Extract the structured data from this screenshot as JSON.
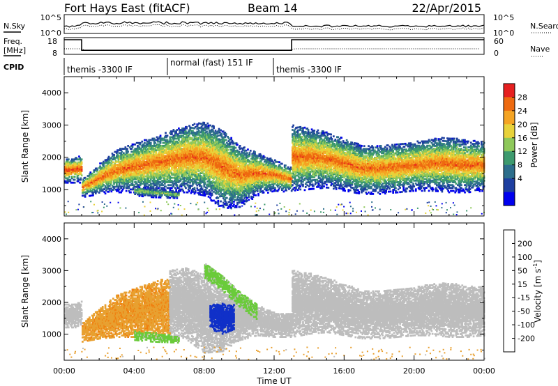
{
  "header": {
    "station": "Fort Hays East (fitACF)",
    "beam": "Beam 14",
    "date": "22/Apr/2015"
  },
  "panels": {
    "nsky": {
      "label": "N.Sky",
      "ticks_left": [
        "10^5",
        "10^0"
      ],
      "ticks_right": [
        "10^5",
        "10^0"
      ],
      "right_label": "N.Search"
    },
    "freq": {
      "label_line1": "Freq.",
      "label_line2": "[MHz]",
      "ticks_left": [
        "18",
        "8"
      ],
      "ticks_right": [
        "60",
        "0"
      ],
      "right_label": "Nave"
    },
    "cpid": {
      "label": "CPID",
      "segments": [
        "themis -3300 IF",
        "normal (fast) 151 IF",
        "themis -3300 IF"
      ]
    }
  },
  "axes": {
    "ylabel": "Slant Range [km]",
    "xlabel": "Time UT",
    "x_ticks": [
      "00:00",
      "04:00",
      "08:00",
      "12:00",
      "16:00",
      "20:00",
      "00:00"
    ],
    "y_ticks": [
      "1000",
      "2000",
      "3000",
      "4000"
    ]
  },
  "colorbars": {
    "power": {
      "label": "Power [dB]",
      "ticks": [
        "4",
        "8",
        "12",
        "16",
        "20",
        "24",
        "28"
      ],
      "colors": [
        "#0000ee",
        "#1e3fa0",
        "#2d6e8c",
        "#3d9a6e",
        "#8ec85a",
        "#e8d23a",
        "#f5a423",
        "#ee6a10",
        "#e62020"
      ]
    },
    "velocity": {
      "label": "Velocity [m s",
      "label_sup": "-1",
      "label_end": "]",
      "ticks": [
        "200",
        "100",
        "50",
        "15",
        "-15",
        "-50",
        "-100",
        "-200"
      ],
      "colors": [
        "#1030c8",
        "#2e63cc",
        "#3c8f5a",
        "#6acb3a",
        "#bdbdbd",
        "#e8a030",
        "#f08010",
        "#ee5010",
        "#e01010"
      ]
    }
  },
  "chart_data": [
    {
      "type": "heatmap",
      "panel": "power",
      "title": "",
      "xlabel": "Time UT",
      "ylabel": "Slant Range [km]",
      "xlim": [
        0,
        24
      ],
      "ylim": [
        180,
        4500
      ],
      "zlabel": "Power [dB]",
      "zlim": [
        0,
        30
      ],
      "segments": [
        {
          "t": [
            0.0,
            0.5,
            1.0
          ],
          "center_km": [
            1600,
            1600,
            1650
          ],
          "width_km": [
            400,
            400,
            450
          ],
          "peak_db": 26
        },
        {
          "t": [
            1.0,
            2.0,
            3.0,
            4.0,
            5.0,
            6.0,
            7.0,
            8.0,
            9.0,
            10.0,
            11.0,
            12.0,
            13.0
          ],
          "center_km": [
            1050,
            1350,
            1600,
            1700,
            1800,
            1900,
            2000,
            2000,
            1700,
            1450,
            1500,
            1450,
            1300
          ],
          "width_km": [
            300,
            500,
            700,
            800,
            900,
            1000,
            1100,
            1200,
            1300,
            1000,
            700,
            500,
            400
          ],
          "peak_db": 24
        },
        {
          "t": [
            4.0,
            5.0,
            6.0,
            6.5
          ],
          "center_km": [
            950,
            900,
            850,
            820
          ],
          "width_km": [
            150,
            150,
            120,
            100
          ],
          "peak_db": 14
        },
        {
          "t": [
            13.0,
            14.0,
            15.0,
            16.0,
            17.0,
            18.0,
            19.0,
            20.0,
            21.0,
            22.0,
            23.0,
            24.0
          ],
          "center_km": [
            2000,
            2000,
            1950,
            1800,
            1650,
            1650,
            1700,
            1750,
            1800,
            1800,
            1750,
            1750
          ],
          "width_km": [
            1100,
            1000,
            900,
            850,
            800,
            800,
            800,
            800,
            850,
            900,
            850,
            800
          ],
          "peak_db": 24
        }
      ]
    },
    {
      "type": "heatmap",
      "panel": "velocity",
      "title": "",
      "xlabel": "Time UT",
      "ylabel": "Slant Range [km]",
      "xlim": [
        0,
        24
      ],
      "ylim": [
        180,
        4500
      ],
      "zlabel": "Velocity [m s-1]",
      "zlim": [
        -200,
        200
      ],
      "segments": [
        {
          "t": [
            0.0,
            0.5,
            1.0
          ],
          "center_km": [
            1600,
            1600,
            1650
          ],
          "width_km": [
            400,
            400,
            450
          ],
          "velocity": 0
        },
        {
          "t": [
            1.0,
            2.0,
            3.0,
            4.0,
            5.0,
            6.0
          ],
          "center_km": [
            1050,
            1350,
            1600,
            1700,
            1800,
            1900
          ],
          "width_km": [
            300,
            500,
            700,
            800,
            900,
            1000
          ],
          "velocity": -60
        },
        {
          "t": [
            6.0,
            7.0,
            8.0,
            9.0,
            10.0,
            11.0,
            12.0,
            13.0
          ],
          "center_km": [
            2000,
            2000,
            1700,
            1450,
            1500,
            1450,
            1300,
            1300
          ],
          "width_km": [
            1100,
            1200,
            1300,
            1000,
            700,
            500,
            400,
            400
          ],
          "velocity": 0
        },
        {
          "t": [
            8.3,
            9.0,
            9.7
          ],
          "center_km": [
            1550,
            1500,
            1550
          ],
          "width_km": [
            400,
            500,
            400
          ],
          "velocity": 200
        },
        {
          "t": [
            8.0,
            9.0,
            10.0,
            11.0
          ],
          "center_km": [
            3000,
            2600,
            2100,
            1700
          ],
          "width_km": [
            250,
            250,
            250,
            250
          ],
          "velocity": 30
        },
        {
          "t": [
            4.0,
            5.0,
            6.0,
            6.5
          ],
          "center_km": [
            950,
            900,
            850,
            820
          ],
          "width_km": [
            150,
            150,
            120,
            100
          ],
          "velocity": 30
        },
        {
          "t": [
            13.0,
            14.0,
            15.0,
            16.0,
            17.0,
            18.0,
            19.0,
            20.0,
            21.0,
            22.0,
            23.0,
            24.0
          ],
          "center_km": [
            2000,
            2000,
            1950,
            1800,
            1650,
            1650,
            1700,
            1750,
            1800,
            1800,
            1750,
            1750
          ],
          "width_km": [
            1100,
            1000,
            900,
            850,
            800,
            800,
            800,
            800,
            850,
            900,
            850,
            800
          ],
          "velocity": 0
        }
      ]
    },
    {
      "type": "line",
      "panel": "frequency",
      "xlabel": "Time UT",
      "ylabel": "Freq. [MHz]",
      "xlim": [
        0,
        24
      ],
      "ylim": [
        8,
        18
      ],
      "x": [
        0.0,
        1.0,
        1.0,
        13.0,
        13.0,
        24.0
      ],
      "y": [
        18,
        18,
        10.4,
        10.4,
        18,
        18
      ]
    }
  ]
}
